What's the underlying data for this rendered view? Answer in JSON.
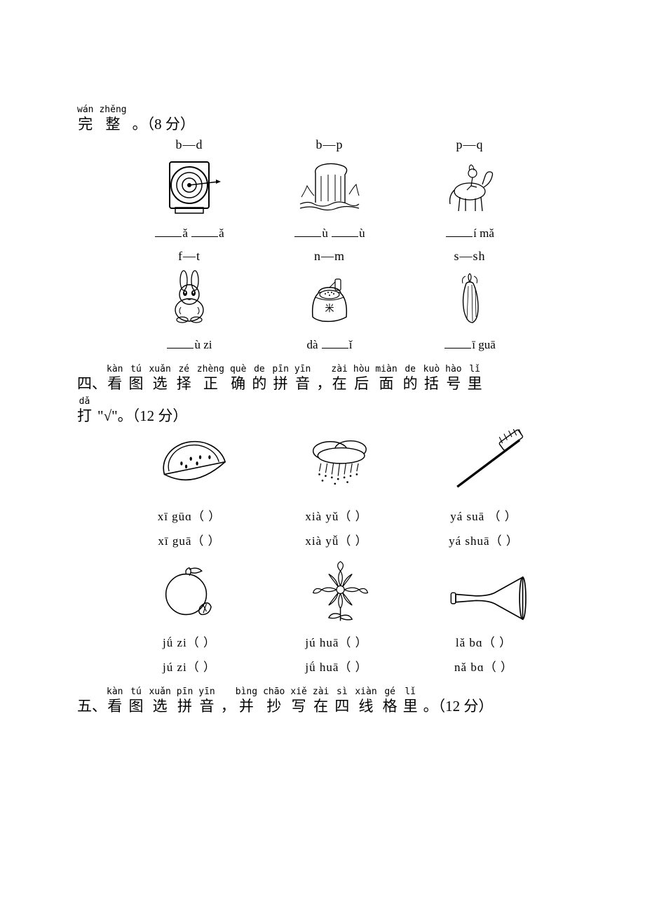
{
  "section3": {
    "title_ruby": [
      {
        "py": "wán",
        "hz": "完"
      },
      {
        "py": "zhěng",
        "hz": "整"
      }
    ],
    "title_tail": "。（8 分）",
    "row1": [
      {
        "pair": "b—d",
        "blank": "___ǎ ___ǎ",
        "img": "target"
      },
      {
        "pair": "b—p",
        "blank": "___ù ___ù",
        "img": "waterfall"
      },
      {
        "pair": "p—q",
        "blank": "___í mǎ",
        "img": "horse"
      }
    ],
    "row2": [
      {
        "pair": "f—t",
        "blank": "___ù  zi",
        "img": "rabbit"
      },
      {
        "pair": "n—m",
        "blank": "dà ___ǐ",
        "img": "rice"
      },
      {
        "pair": "s—sh",
        "blank": "___ī guā",
        "img": "loofah"
      }
    ]
  },
  "section4": {
    "num": "四、",
    "title_ruby": [
      {
        "py": "kàn",
        "hz": "看"
      },
      {
        "py": "tú",
        "hz": "图"
      },
      {
        "py": "xuǎn",
        "hz": "选"
      },
      {
        "py": "zé",
        "hz": "择"
      },
      {
        "py": "zhèng",
        "hz": "正"
      },
      {
        "py": "què",
        "hz": "确"
      },
      {
        "py": "de",
        "hz": "的"
      },
      {
        "py": "pīn",
        "hz": "拼"
      },
      {
        "py": "yīn",
        "hz": "音"
      }
    ],
    "comma": "，",
    "title_ruby2": [
      {
        "py": "zài",
        "hz": "在"
      },
      {
        "py": "hòu",
        "hz": "后"
      },
      {
        "py": "miàn",
        "hz": "面"
      },
      {
        "py": "de",
        "hz": "的"
      },
      {
        "py": "kuò",
        "hz": "括"
      },
      {
        "py": "hào",
        "hz": "号"
      },
      {
        "py": "lǐ",
        "hz": "里"
      }
    ],
    "line2_ruby": [
      {
        "py": "dǎ",
        "hz": "打"
      }
    ],
    "line2_tail": " \"√\"。（12 分）",
    "row1": [
      {
        "img": "watermelon",
        "a": "xī gūɑ（    ）",
        "b": "xī guā（    ）"
      },
      {
        "img": "rain",
        "a": "xià yǔ（    ）",
        "b": "xià yǚ（    ）"
      },
      {
        "img": "toothbrush",
        "a": "yá suā （    ）",
        "b": "yá shuā（    ）"
      }
    ],
    "row2": [
      {
        "img": "orange",
        "a": "jǘ zi（    ）",
        "b": "jú zi（    ）"
      },
      {
        "img": "chrys",
        "a": "jú huā（    ）",
        "b": "jǘ huā（    ）"
      },
      {
        "img": "trumpet",
        "a": "lǎ bɑ（    ）",
        "b": "nǎ bɑ（    ）"
      }
    ]
  },
  "section5": {
    "num": "五、",
    "title_ruby": [
      {
        "py": "kàn",
        "hz": "看"
      },
      {
        "py": "tú",
        "hz": "图"
      },
      {
        "py": "xuǎn",
        "hz": "选"
      },
      {
        "py": "pīn",
        "hz": "拼"
      },
      {
        "py": "yīn",
        "hz": "音"
      }
    ],
    "comma": "，",
    "title_ruby2": [
      {
        "py": "bìng",
        "hz": "并"
      },
      {
        "py": "chāo",
        "hz": "抄"
      },
      {
        "py": "xiě",
        "hz": "写"
      },
      {
        "py": "zài",
        "hz": "在"
      },
      {
        "py": "sì",
        "hz": "四"
      },
      {
        "py": "xiàn",
        "hz": "线"
      },
      {
        "py": "gé",
        "hz": "格"
      },
      {
        "py": "lǐ",
        "hz": "里"
      }
    ],
    "tail": "。（12 分）"
  },
  "svg": {
    "target": "<rect x='30' y='75' width='40' height='8' fill='none' stroke='#000' stroke-width='1.5'/><rect x='22' y='10' width='56' height='66' rx='3' fill='none' stroke='#000' stroke-width='2'/><circle cx='50' cy='43' r='26' fill='none' stroke='#000' stroke-width='2'/><circle cx='50' cy='43' r='18' fill='none' stroke='#000' stroke-width='1.5'/><circle cx='50' cy='43' r='10' fill='none' stroke='#000' stroke-width='1.5'/><circle cx='50' cy='43' r='3' fill='#000'/><line x1='50' y1='43' x2='92' y2='38' stroke='#000' stroke-width='1.5'/><path d='M88 35 L95 38 L88 41 Z' fill='#000'/>",
    "waterfall": "<path d='M8 70 Q20 65 28 70 Q40 76 52 70 Q64 64 76 70 Q86 75 92 70' fill='none' stroke='#000' stroke-width='1.2'/><path d='M8 76 Q22 72 34 76 Q48 81 60 76 Q74 71 92 76' fill='none' stroke='#000' stroke-width='1.2'/><path d='M30 68 L30 26 Q28 18 40 14 Q55 10 70 16 Q78 20 72 28 L72 68' fill='none' stroke='#000' stroke-width='1.4'/><line x1='38' y1='30' x2='38' y2='66' stroke='#000'/><line x1='48' y1='28' x2='48' y2='66' stroke='#000'/><line x1='58' y1='28' x2='58' y2='66' stroke='#000'/><line x1='66' y1='30' x2='66' y2='66' stroke='#000'/><path d='M10 60 Q16 50 18 44 Q24 54 28 58' fill='none' stroke='#000'/><path d='M78 56 Q84 46 88 42 Q90 52 92 58' fill='none' stroke='#000'/>",
    "horse": "<ellipse cx='50' cy='52' rx='22' ry='12' fill='none' stroke='#000' stroke-width='1.3'/><path d='M70 46 Q80 40 82 30 Q84 24 78 24 Q74 24 72 30 Q70 36 68 42' fill='none' stroke='#000' stroke-width='1.3'/><line x1='36' y1='60' x2='34' y2='80' stroke='#000' stroke-width='1.3'/><line x1='44' y1='62' x2='44' y2='80' stroke='#000' stroke-width='1.3'/><line x1='58' y1='62' x2='58' y2='80' stroke='#000' stroke-width='1.3'/><line x1='66' y1='60' x2='68' y2='80' stroke='#000' stroke-width='1.3'/><path d='M28 50 Q20 58 22 70' fill='none' stroke='#000' stroke-width='1.3'/><circle cx='54' cy='26' r='6' fill='none' stroke='#000' stroke-width='1.2'/><path d='M54 32 L52 44 M52 44 L46 50 M52 44 L60 46' stroke='#000' stroke-width='1.2' fill='none'/><path d='M50 22 Q48 16 52 14 Q56 16 56 22' fill='none' stroke='#000'/>",
    "rabbit": "<ellipse cx='50' cy='62' rx='20' ry='16' fill='none' stroke='#000' stroke-width='1.4'/><circle cx='50' cy='40' r='14' fill='none' stroke='#000' stroke-width='1.4'/><ellipse cx='42' cy='20' rx='5' ry='14' fill='none' stroke='#000' stroke-width='1.3'/><ellipse cx='58' cy='20' rx='5' ry='14' fill='none' stroke='#000' stroke-width='1.3'/><ellipse cx='44' cy='38' rx='3' ry='4' fill='#000'/><ellipse cx='56' cy='38' rx='3' ry='4' fill='#000'/><ellipse cx='44' cy='37' rx='1' ry='1.5' fill='#fff'/><ellipse cx='56' cy='37' rx='1' ry='1.5' fill='#fff'/><path d='M47 46 Q50 49 53 46' fill='none' stroke='#000'/><ellipse cx='40' cy='76' rx='8' ry='4' fill='none' stroke='#000' stroke-width='1.2'/><ellipse cx='60' cy='76' rx='8' ry='4' fill='none' stroke='#000' stroke-width='1.2'/><path d='M38 58 Q34 64 38 68' fill='none' stroke='#000'/><path d='M62 58 Q66 64 62 68' fill='none' stroke='#000'/>",
    "rice": "<path d='M26 72 Q24 48 34 38 Q36 30 50 30 Q64 30 66 38 Q76 48 74 72 Q60 80 40 78 Q30 76 26 72 Z' fill='none' stroke='#000' stroke-width='1.5'/><path d='M34 38 Q50 32 66 38' fill='none' stroke='#000' stroke-width='1.2'/><path d='M30 44 Q50 52 70 44' fill='none' stroke='#000'/><ellipse cx='50' cy='40' rx='14' ry='6' fill='#fff' stroke='#000' stroke-width='1.2'/><circle cx='44' cy='39' r='1' fill='#000'/><circle cx='50' cy='41' r='1' fill='#000'/><circle cx='56' cy='39' r='1' fill='#000'/><circle cx='48' cy='37' r='1' fill='#000'/><circle cx='53' cy='37' r='1' fill='#000'/><text x='50' y='64' font-size='13' text-anchor='middle' font-family='SimSun'>米</text><rect x='58' y='18' width='8' height='16' rx='2' fill='none' stroke='#000' stroke-width='1.2'/><path d='M58 22 L50 30' stroke='#000'/>",
    "loofah": "<path d='M50 10 Q46 14 50 22 Q54 14 50 10' fill='none' stroke='#000' stroke-width='1.2'/><path d='M44 14 Q38 16 40 24' fill='none' stroke='#000'/><path d='M56 14 Q62 16 60 24' fill='none' stroke='#000'/><path d='M45 24 Q38 44 42 64 Q46 80 54 80 Q62 76 62 58 Q62 40 55 24 Q50 20 45 24 Z' fill='none' stroke='#000' stroke-width='1.4'/><line x1='48' y1='28' x2='46' y2='76' stroke='#000' stroke-width='0.8'/><line x1='53' y1='26' x2='54' y2='78' stroke='#000' stroke-width='0.8'/><line x1='58' y1='30' x2='59' y2='72' stroke='#000' stroke-width='0.8'/>",
    "watermelon": "<path d='M18 58 A40 34 0 0 1 96 42 L18 58 Z' fill='none' stroke='#000' stroke-width='1.5'/><path d='M24 54 A32 27 0 0 1 88 42' fill='none' stroke='#000' stroke-width='1.2'/><path d='M18 58 Q56 78 96 42' fill='none' stroke='#000' stroke-width='1.5'/><ellipse cx='40' cy='44' rx='1.5' ry='2.5' fill='#000'/><ellipse cx='52' cy='38' rx='1.5' ry='2.5' fill='#000'/><ellipse cx='64' cy='36' rx='1.5' ry='2.5' fill='#000'/><ellipse cx='76' cy='36' rx='1.5' ry='2.5' fill='#000'/><ellipse cx='46' cy='48' rx='1.5' ry='2.5' fill='#000'/><ellipse cx='60' cy='44' rx='1.5' ry='2.5' fill='#000'/>",
    "rain": "<ellipse cx='42' cy='28' rx='22' ry='12' fill='none' stroke='#000' stroke-width='1.3'/><ellipse cx='68' cy='26' rx='20' ry='11' fill='none' stroke='#000' stroke-width='1.3'/><ellipse cx='56' cy='34' rx='30' ry='10' fill='#fff' stroke='#000' stroke-width='1.3'/><g stroke='#000' stroke-width='1'><line x1='30' y1='44' x2='28' y2='54'/><line x1='38' y1='44' x2='36' y2='56'/><line x1='46' y1='44' x2='44' y2='58'/><line x1='54' y1='44' x2='52' y2='60'/><line x1='62' y1='44' x2='60' y2='58'/><line x1='70' y1='44' x2='68' y2='56'/><line x1='78' y1='44' x2='76' y2='54'/></g><g fill='#000'><circle cx='28' cy='58' r='1.2'/><circle cx='36' cy='60' r='1.2'/><circle cx='44' cy='62' r='1.2'/><circle cx='52' cy='64' r='1.2'/><circle cx='60' cy='62' r='1.2'/><circle cx='68' cy='60' r='1.2'/><circle cx='76' cy='58' r='1.2'/><circle cx='32' cy='66' r='1.2'/><circle cx='48' cy='70' r='1.2'/><circle cx='64' cy='68' r='1.2'/></g>",
    "toothbrush": "<line x1='16' y1='74' x2='96' y2='14' stroke='#000' stroke-width='3'/><rect x='70' y='8' width='30' height='12' rx='2' transform='rotate(-36 85 14)' fill='none' stroke='#000' stroke-width='1.3'/><g stroke='#000' stroke-width='1'><line x1='74' y1='18' x2='70' y2='10'/><line x1='80' y1='14' x2='76' y2='6'/><line x1='86' y1='10' x2='82' y2='2'/><line x1='92' y1='8' x2='88' y2='0'/><line x1='98' y1='6' x2='94' y2='-2'/></g>",
    "orange": "<circle cx='46' cy='50' r='26' fill='none' stroke='#000' stroke-width='1.4'/><path d='M46 24 Q44 18 50 16 Q54 20 50 26' fill='none' stroke='#000' stroke-width='1.2'/><path d='M50 18 Q60 14 66 20 Q58 24 52 22' fill='none' stroke='#000' stroke-width='1.2'/><path d='M64 66 Q74 56 78 66 Q76 76 66 76 Q60 74 64 66 Z' fill='none' stroke='#000' stroke-width='1.3'/><line x1='68' y1='64' x2='72' y2='72' stroke='#000'/><line x1='72' y1='62' x2='68' y2='74' stroke='#000'/>",
    "chrys": "<g fill='none' stroke='#000' stroke-width='1.1'><circle cx='55' cy='44' r='5'/><path d='M55 39 Q50 28 55 20 Q60 28 55 39'/><path d='M55 49 Q50 60 55 68 Q60 60 55 49'/><path d='M50 44 Q39 39 31 44 Q39 49 50 44'/><path d='M60 44 Q71 39 79 44 Q71 49 60 44'/><path d='M52 40 Q44 30 40 24 Q50 30 52 40'/><path d='M58 40 Q66 30 70 24 Q60 30 58 40'/><path d='M52 48 Q44 58 40 64 Q50 58 52 48'/><path d='M58 48 Q66 58 70 64 Q60 58 58 48'/><path d='M55 20 Q48 12 55 8 Q62 12 55 20'/><path d='M31 44 Q22 40 20 48 Q26 50 31 44'/><path d='M79 44 Q88 40 90 48 Q84 50 79 44'/></g><path d='M55 68 L55 84' stroke='#000' stroke-width='1.3'/><path d='M55 76 Q44 72 40 80 Q48 82 55 78' fill='none' stroke='#000' stroke-width='1.2'/><path d='M55 78 Q66 74 70 82 Q62 84 55 80' fill='none' stroke='#000' stroke-width='1.2'/>",
    "trumpet": "<path d='M14 50 L14 60 L40 58 Q56 58 64 62 Q82 72 100 82 L100 28 Q82 38 64 48 Q56 52 40 52 Z' fill='none' stroke='#000' stroke-width='1.5'/><ellipse cx='100' cy='55' rx='4' ry='27' fill='none' stroke='#000' stroke-width='1.5'/><rect x='8' y='48' width='6' height='14' rx='2' fill='none' stroke='#000' stroke-width='1.3'/>"
  }
}
